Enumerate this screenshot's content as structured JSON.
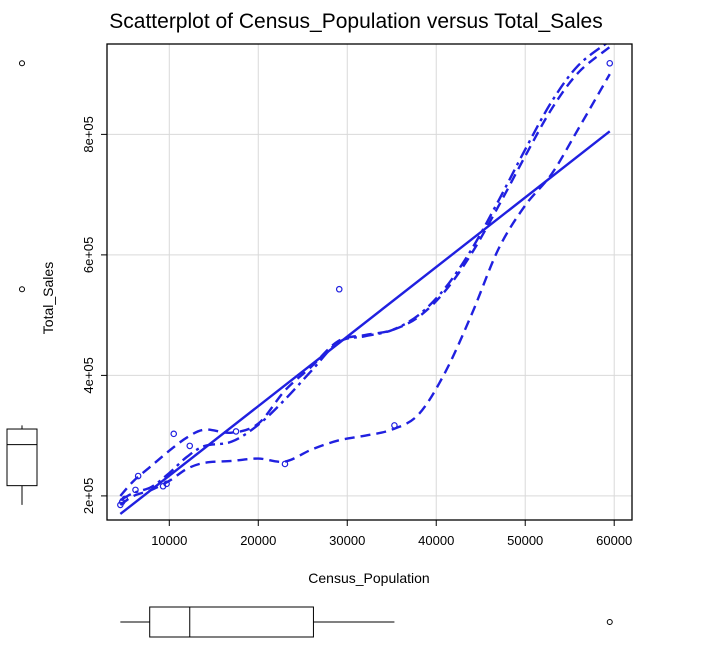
{
  "chart_data": {
    "type": "scatter",
    "title": "Scatterplot of Census_Population versus Total_Sales",
    "xlabel": "Census_Population",
    "ylabel": "Total_Sales",
    "xlim": [
      3000,
      62000
    ],
    "ylim": [
      160000,
      950000
    ],
    "x_ticks": [
      10000,
      20000,
      30000,
      40000,
      50000,
      60000
    ],
    "x_tick_labels": [
      "10000",
      "20000",
      "30000",
      "40000",
      "50000",
      "60000"
    ],
    "y_ticks": [
      200000,
      400000,
      600000,
      800000
    ],
    "y_tick_labels": [
      "2e+05",
      "4e+05",
      "6e+05",
      "8e+05"
    ],
    "grid": true,
    "color": "#2020e0",
    "points": [
      {
        "x": 4500,
        "y": 185000
      },
      {
        "x": 4700,
        "y": 190000
      },
      {
        "x": 5000,
        "y": 195000
      },
      {
        "x": 6200,
        "y": 210000
      },
      {
        "x": 6500,
        "y": 233000
      },
      {
        "x": 9300,
        "y": 216000
      },
      {
        "x": 9700,
        "y": 220000
      },
      {
        "x": 10500,
        "y": 303000
      },
      {
        "x": 12300,
        "y": 283000
      },
      {
        "x": 17500,
        "y": 307000
      },
      {
        "x": 23000,
        "y": 253000
      },
      {
        "x": 29100,
        "y": 543000
      },
      {
        "x": 35300,
        "y": 317000
      },
      {
        "x": 59500,
        "y": 918000
      }
    ],
    "regression_line": {
      "x": [
        4500,
        59500
      ],
      "y": [
        170000,
        805000
      ]
    },
    "smooth_center": {
      "x": [
        4500,
        6000,
        8000,
        10000,
        12000,
        14000,
        17000,
        20000,
        23000,
        26000,
        29000,
        32000,
        35000,
        38000,
        41000,
        44000,
        47000,
        50000,
        53000,
        56000,
        59500
      ],
      "y": [
        193000,
        205000,
        215000,
        238000,
        265000,
        283000,
        290000,
        318000,
        360000,
        408000,
        455000,
        465000,
        475000,
        500000,
        545000,
        610000,
        690000,
        775000,
        855000,
        915000,
        955000
      ]
    },
    "smooth_upper": {
      "x": [
        4500,
        6000,
        8000,
        10000,
        12000,
        14000,
        17000,
        20000,
        23000,
        26000,
        29000,
        32000,
        35000,
        38000,
        41000,
        44000,
        47000,
        50000,
        53000,
        56000,
        59500
      ],
      "y": [
        200000,
        225000,
        250000,
        275000,
        297000,
        310000,
        305000,
        320000,
        375000,
        415000,
        457000,
        467000,
        475000,
        497000,
        540000,
        603000,
        681000,
        764000,
        843000,
        903000,
        945000
      ]
    },
    "smooth_lower": {
      "x": [
        4500,
        6000,
        8000,
        10000,
        12000,
        14000,
        17000,
        20000,
        23000,
        26000,
        29000,
        32000,
        35000,
        38000,
        41000,
        44000,
        47000,
        50000,
        53000,
        56000,
        59500
      ],
      "y": [
        185000,
        200000,
        210000,
        225000,
        245000,
        255000,
        258000,
        262000,
        257000,
        277000,
        292000,
        300000,
        310000,
        335000,
        405000,
        502000,
        610000,
        682000,
        735000,
        810000,
        900000
      ]
    },
    "boxplot_x": {
      "min": 4500,
      "q1": 7800,
      "median": 12300,
      "q3": 26200,
      "max": 35300,
      "outliers": [
        59500
      ]
    },
    "boxplot_y": {
      "min": 185000,
      "q1": 217000,
      "median": 285000,
      "q3": 311000,
      "max": 317000,
      "outliers": [
        543000,
        918000
      ]
    }
  }
}
